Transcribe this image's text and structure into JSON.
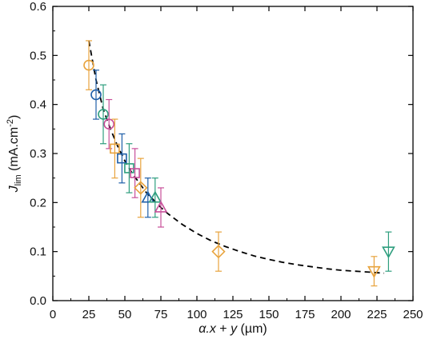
{
  "chart_data": {
    "type": "scatter",
    "xlabel_parts": {
      "var1": "α.x",
      "op": " + ",
      "var2": "y",
      "unit": " (µm)"
    },
    "ylabel_parts": {
      "main": "J",
      "sub": "lim",
      "unit": " (mA.cm",
      "sup": "-2",
      "close": ")"
    },
    "xlim": [
      0,
      250
    ],
    "ylim": [
      0.0,
      0.6
    ],
    "x_ticks": [
      0,
      25,
      50,
      75,
      100,
      125,
      150,
      175,
      200,
      225,
      250
    ],
    "y_ticks": [
      0.0,
      0.1,
      0.2,
      0.3,
      0.4,
      0.5,
      0.6
    ],
    "y_tick_labels": [
      "0.0",
      "0.1",
      "0.2",
      "0.3",
      "0.4",
      "0.5",
      "0.6"
    ],
    "grid": false,
    "colors": {
      "orange": "#E8A33D",
      "blue": "#1F5FA8",
      "green": "#2E9E7E",
      "pink": "#C8509A",
      "fit": "#000000",
      "frame": "#000000"
    },
    "points": [
      {
        "x": 25,
        "y": 0.48,
        "err": 0.05,
        "marker": "circle",
        "color": "orange"
      },
      {
        "x": 30,
        "y": 0.42,
        "err": 0.05,
        "marker": "circle",
        "color": "blue"
      },
      {
        "x": 35,
        "y": 0.38,
        "err": 0.06,
        "marker": "circle",
        "color": "green"
      },
      {
        "x": 39,
        "y": 0.36,
        "err": 0.05,
        "marker": "circle",
        "color": "pink"
      },
      {
        "x": 43,
        "y": 0.31,
        "err": 0.06,
        "marker": "square",
        "color": "orange"
      },
      {
        "x": 48,
        "y": 0.29,
        "err": 0.05,
        "marker": "square",
        "color": "blue"
      },
      {
        "x": 53,
        "y": 0.27,
        "err": 0.05,
        "marker": "square",
        "color": "green"
      },
      {
        "x": 57,
        "y": 0.26,
        "err": 0.05,
        "marker": "square",
        "color": "pink"
      },
      {
        "x": 61,
        "y": 0.23,
        "err": 0.06,
        "marker": "diamond",
        "color": "orange"
      },
      {
        "x": 66,
        "y": 0.21,
        "err": 0.04,
        "marker": "triangle-up",
        "color": "blue"
      },
      {
        "x": 71,
        "y": 0.21,
        "err": 0.04,
        "marker": "triangle-up",
        "color": "green"
      },
      {
        "x": 75,
        "y": 0.19,
        "err": 0.04,
        "marker": "triangle-up",
        "color": "pink"
      },
      {
        "x": 115,
        "y": 0.1,
        "err": 0.04,
        "marker": "diamond",
        "color": "orange"
      },
      {
        "x": 223,
        "y": 0.06,
        "err": 0.03,
        "marker": "triangle-down",
        "color": "orange"
      },
      {
        "x": 233,
        "y": 0.1,
        "err": 0.04,
        "marker": "triangle-down",
        "color": "green"
      }
    ],
    "fit_curve": {
      "style": "dashed",
      "x": [
        25,
        30,
        35,
        40,
        45,
        50,
        55,
        60,
        65,
        70,
        75,
        80,
        90,
        100,
        110,
        120,
        130,
        140,
        150,
        160,
        170,
        180,
        190,
        200,
        210,
        220,
        230
      ],
      "y": [
        0.53,
        0.45,
        0.39,
        0.35,
        0.315,
        0.285,
        0.26,
        0.24,
        0.22,
        0.205,
        0.19,
        0.177,
        0.155,
        0.137,
        0.122,
        0.11,
        0.1,
        0.091,
        0.084,
        0.078,
        0.073,
        0.069,
        0.065,
        0.062,
        0.06,
        0.058,
        0.056
      ]
    }
  }
}
